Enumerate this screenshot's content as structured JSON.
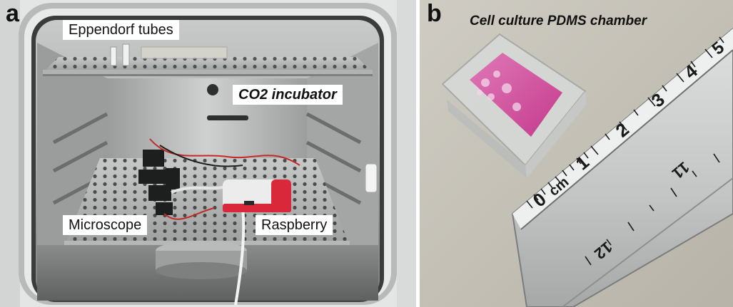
{
  "panels": {
    "a": {
      "letter": "a",
      "labels": {
        "eppendorf": "Eppendorf tubes",
        "incubator": "CO2 incubator",
        "microscope": "Microscope",
        "raspberry": "Raspberry"
      }
    },
    "b": {
      "letter": "b",
      "labels": {
        "chamber": "Cell culture PDMS chamber",
        "unit": "cm"
      },
      "ruler_top_numbers": [
        "0",
        "1",
        "2",
        "3",
        "4",
        "5"
      ],
      "ruler_bottom_numbers": [
        "11",
        "12"
      ]
    }
  },
  "colors": {
    "steel_light": "#d6d8d6",
    "steel_dark": "#8f9190",
    "raspberry_case": "#d8283a",
    "pdms_pink": "#d24d9e",
    "ruler_metal": "#c4c7c6",
    "background_tan": "#c9c6bd"
  }
}
